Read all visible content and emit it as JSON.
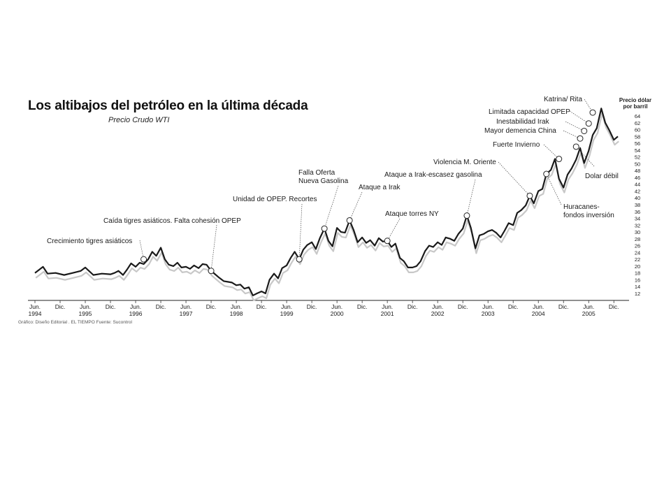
{
  "header": {
    "title": "Los altibajos del petróleo en la última década",
    "subtitle": "Precio Crudo WTI",
    "credits": "Gráfico: Diseño Editorial . EL TIEMPO   Fuente: Sucontrol"
  },
  "chart_data": {
    "type": "line",
    "title": "Los altibajos del petróleo en la última década",
    "subtitle": "Precio Crudo WTI",
    "ylabel": "Precio dólar por barril",
    "ylim": [
      12,
      64
    ],
    "yticks": [
      12,
      14,
      16,
      18,
      20,
      22,
      24,
      26,
      28,
      30,
      32,
      34,
      36,
      38,
      40,
      42,
      44,
      46,
      48,
      50,
      52,
      54,
      56,
      58,
      60,
      62,
      64
    ],
    "xlim": [
      1994.4,
      2006.0
    ],
    "xticks": [
      {
        "t": 1994.42,
        "l1": "Jun.",
        "l2": "1994"
      },
      {
        "t": 1994.92,
        "l1": "Dic.",
        "l2": ""
      },
      {
        "t": 1995.42,
        "l1": "Jun.",
        "l2": "1995"
      },
      {
        "t": 1995.92,
        "l1": "Dic.",
        "l2": ""
      },
      {
        "t": 1996.42,
        "l1": "Jun.",
        "l2": "1996"
      },
      {
        "t": 1996.92,
        "l1": "Dic.",
        "l2": ""
      },
      {
        "t": 1997.42,
        "l1": "Jun.",
        "l2": "1997"
      },
      {
        "t": 1997.92,
        "l1": "Dic.",
        "l2": ""
      },
      {
        "t": 1998.42,
        "l1": "Jun.",
        "l2": "1998"
      },
      {
        "t": 1998.92,
        "l1": "Dic.",
        "l2": ""
      },
      {
        "t": 1999.42,
        "l1": "Jun.",
        "l2": "1999"
      },
      {
        "t": 1999.92,
        "l1": "Dic.",
        "l2": ""
      },
      {
        "t": 2000.42,
        "l1": "Jun.",
        "l2": "2000"
      },
      {
        "t": 2000.92,
        "l1": "Dic.",
        "l2": ""
      },
      {
        "t": 2001.42,
        "l1": "Jun.",
        "l2": "2001"
      },
      {
        "t": 2001.92,
        "l1": "Dic.",
        "l2": ""
      },
      {
        "t": 2002.42,
        "l1": "Jun.",
        "l2": "2002"
      },
      {
        "t": 2002.92,
        "l1": "Dic.",
        "l2": ""
      },
      {
        "t": 2003.42,
        "l1": "Jun.",
        "l2": "2003"
      },
      {
        "t": 2003.92,
        "l1": "Dic.",
        "l2": ""
      },
      {
        "t": 2004.42,
        "l1": "Jun.",
        "l2": "2004"
      },
      {
        "t": 2004.92,
        "l1": "Dic.",
        "l2": ""
      },
      {
        "t": 2005.42,
        "l1": "Jun.",
        "l2": "2005"
      },
      {
        "t": 2005.92,
        "l1": "Dic.",
        "l2": ""
      }
    ],
    "grid": false,
    "series": [
      {
        "color": "#1a1a1a",
        "points": [
          [
            1994.42,
            18.0
          ],
          [
            1994.58,
            19.8
          ],
          [
            1994.67,
            17.8
          ],
          [
            1994.83,
            18.0
          ],
          [
            1995.0,
            17.4
          ],
          [
            1995.17,
            18.0
          ],
          [
            1995.33,
            18.6
          ],
          [
            1995.42,
            19.6
          ],
          [
            1995.58,
            17.4
          ],
          [
            1995.75,
            17.8
          ],
          [
            1995.92,
            17.6
          ],
          [
            1996.0,
            18.0
          ],
          [
            1996.08,
            18.6
          ],
          [
            1996.17,
            17.4
          ],
          [
            1996.25,
            19.0
          ],
          [
            1996.33,
            20.8
          ],
          [
            1996.42,
            19.8
          ],
          [
            1996.5,
            21.0
          ],
          [
            1996.58,
            20.6
          ],
          [
            1996.67,
            22.0
          ],
          [
            1996.75,
            24.2
          ],
          [
            1996.83,
            23.0
          ],
          [
            1996.92,
            25.4
          ],
          [
            1997.0,
            22.0
          ],
          [
            1997.08,
            20.4
          ],
          [
            1997.17,
            20.0
          ],
          [
            1997.25,
            21.0
          ],
          [
            1997.33,
            19.6
          ],
          [
            1997.42,
            19.8
          ],
          [
            1997.5,
            19.2
          ],
          [
            1997.58,
            20.2
          ],
          [
            1997.67,
            19.4
          ],
          [
            1997.75,
            20.6
          ],
          [
            1997.83,
            20.4
          ],
          [
            1997.92,
            18.6
          ],
          [
            1998.0,
            17.6
          ],
          [
            1998.08,
            16.6
          ],
          [
            1998.17,
            15.6
          ],
          [
            1998.25,
            15.4
          ],
          [
            1998.33,
            15.2
          ],
          [
            1998.42,
            14.4
          ],
          [
            1998.5,
            14.6
          ],
          [
            1998.58,
            13.4
          ],
          [
            1998.67,
            13.8
          ],
          [
            1998.75,
            11.4
          ],
          [
            1998.83,
            12.0
          ],
          [
            1998.92,
            12.6
          ],
          [
            1999.0,
            12.0
          ],
          [
            1999.08,
            16.0
          ],
          [
            1999.17,
            17.8
          ],
          [
            1999.25,
            16.4
          ],
          [
            1999.33,
            19.4
          ],
          [
            1999.42,
            20.2
          ],
          [
            1999.5,
            22.4
          ],
          [
            1999.58,
            24.2
          ],
          [
            1999.67,
            22.0
          ],
          [
            1999.75,
            24.8
          ],
          [
            1999.83,
            26.2
          ],
          [
            1999.92,
            27.0
          ],
          [
            2000.0,
            25.0
          ],
          [
            2000.08,
            28.2
          ],
          [
            2000.17,
            31.0
          ],
          [
            2000.25,
            27.4
          ],
          [
            2000.33,
            25.8
          ],
          [
            2000.42,
            31.2
          ],
          [
            2000.5,
            30.0
          ],
          [
            2000.58,
            29.8
          ],
          [
            2000.67,
            33.4
          ],
          [
            2000.75,
            30.6
          ],
          [
            2000.83,
            27.0
          ],
          [
            2000.92,
            28.4
          ],
          [
            2001.0,
            26.8
          ],
          [
            2001.08,
            27.6
          ],
          [
            2001.17,
            26.0
          ],
          [
            2001.25,
            28.2
          ],
          [
            2001.33,
            27.2
          ],
          [
            2001.42,
            27.4
          ],
          [
            2001.5,
            25.6
          ],
          [
            2001.58,
            26.6
          ],
          [
            2001.67,
            22.4
          ],
          [
            2001.75,
            21.4
          ],
          [
            2001.83,
            19.6
          ],
          [
            2001.92,
            19.6
          ],
          [
            2002.0,
            20.0
          ],
          [
            2002.08,
            21.4
          ],
          [
            2002.17,
            24.4
          ],
          [
            2002.25,
            26.0
          ],
          [
            2002.33,
            25.6
          ],
          [
            2002.42,
            27.0
          ],
          [
            2002.5,
            26.2
          ],
          [
            2002.58,
            28.4
          ],
          [
            2002.67,
            28.0
          ],
          [
            2002.75,
            27.4
          ],
          [
            2002.83,
            29.4
          ],
          [
            2002.92,
            31.0
          ],
          [
            2003.0,
            34.8
          ],
          [
            2003.08,
            31.2
          ],
          [
            2003.17,
            25.2
          ],
          [
            2003.25,
            29.0
          ],
          [
            2003.33,
            29.4
          ],
          [
            2003.42,
            30.2
          ],
          [
            2003.5,
            30.6
          ],
          [
            2003.58,
            29.8
          ],
          [
            2003.67,
            28.4
          ],
          [
            2003.75,
            30.4
          ],
          [
            2003.83,
            32.6
          ],
          [
            2003.92,
            32.0
          ],
          [
            2004.0,
            35.6
          ],
          [
            2004.08,
            36.4
          ],
          [
            2004.17,
            37.8
          ],
          [
            2004.25,
            40.6
          ],
          [
            2004.33,
            38.4
          ],
          [
            2004.42,
            42.0
          ],
          [
            2004.5,
            42.6
          ],
          [
            2004.58,
            47.0
          ],
          [
            2004.67,
            48.2
          ],
          [
            2004.75,
            51.4
          ],
          [
            2004.83,
            45.6
          ],
          [
            2004.92,
            43.0
          ],
          [
            2005.0,
            46.8
          ],
          [
            2005.08,
            48.6
          ],
          [
            2005.17,
            51.2
          ],
          [
            2005.25,
            54.6
          ],
          [
            2005.33,
            50.2
          ],
          [
            2005.42,
            53.8
          ],
          [
            2005.5,
            58.4
          ],
          [
            2005.58,
            60.4
          ],
          [
            2005.67,
            66.2
          ],
          [
            2005.75,
            62.0
          ],
          [
            2005.83,
            59.8
          ],
          [
            2005.92,
            57.0
          ],
          [
            2006.0,
            58.0
          ]
        ]
      }
    ],
    "annotations": [
      {
        "id": "1",
        "label": "Crecimiento tigres asiáticos",
        "x": 1996.58,
        "y": 22.0,
        "side": "left"
      },
      {
        "id": "2",
        "label": "Caída tigres asiáticos. Falta cohesión OPEP",
        "x": 1997.92,
        "y": 18.6,
        "side": "left"
      },
      {
        "id": "3",
        "label": "Unidad de OPEP. Recortes",
        "x": 1999.67,
        "y": 22.0,
        "side": "left"
      },
      {
        "id": "4",
        "label": "Falla Oferta",
        "label2": "Nueva Gasolina",
        "x": 2000.17,
        "y": 31.0,
        "side": "left"
      },
      {
        "id": "5",
        "label": "Ataque a Irak",
        "x": 2000.67,
        "y": 33.4,
        "side": "right"
      },
      {
        "id": "6",
        "label": "Ataque torres NY",
        "x": 2001.42,
        "y": 27.4,
        "side": "right"
      },
      {
        "id": "7",
        "label": "Ataque a Irak-escasez gasolina",
        "x": 2003.0,
        "y": 34.8,
        "side": "left"
      },
      {
        "id": "8",
        "label": "Violencia M. Oriente",
        "x": 2004.25,
        "y": 40.6,
        "side": "left"
      },
      {
        "id": "9",
        "label": "Huracanes-",
        "label2": "fondos inversión",
        "x": 2004.58,
        "y": 47.0,
        "side": "right"
      },
      {
        "id": "10",
        "label": "Fuerte Invierno",
        "x": 2004.83,
        "y": 51.4,
        "side": "left"
      },
      {
        "id": "11",
        "label": "Dolar débil",
        "x": 2005.17,
        "y": 55.0,
        "side": "right"
      },
      {
        "id": "12",
        "label": "Mayor demencia China",
        "x": 2005.25,
        "y": 57.4,
        "side": "left"
      },
      {
        "id": "13",
        "label": "Inestabilidad Irak",
        "x": 2005.33,
        "y": 59.6,
        "side": "left"
      },
      {
        "id": "14",
        "label": "Limitada capacidad OPEP",
        "x": 2005.42,
        "y": 61.8,
        "side": "left"
      },
      {
        "id": "15",
        "label": "Katrina/ Rita",
        "x": 2005.5,
        "y": 65.0,
        "side": "left"
      }
    ]
  }
}
